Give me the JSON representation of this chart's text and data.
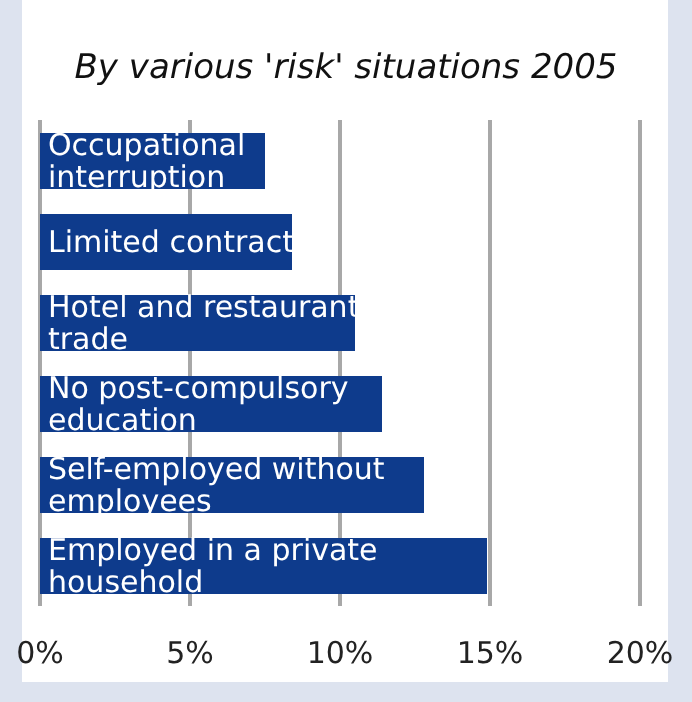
{
  "chart_data": {
    "type": "bar",
    "orientation": "horizontal",
    "title": "By various 'risk' situations 2005",
    "categories": [
      "Occupational interruption",
      "Limited contract",
      "Hotel and restaurant trade",
      "No post-compulsory education",
      "Self-employed without employees",
      "Employed in a private household"
    ],
    "values": [
      7.5,
      8.4,
      10.5,
      11.4,
      12.8,
      14.9
    ],
    "color": "#0e3b8c",
    "xlim": [
      0,
      20
    ],
    "xticks": [
      {
        "value": 0,
        "label": "0%"
      },
      {
        "value": 5,
        "label": "5%"
      },
      {
        "value": 10,
        "label": "10%"
      },
      {
        "value": 15,
        "label": "15%"
      },
      {
        "value": 20,
        "label": "20%"
      }
    ],
    "grid": "x"
  }
}
